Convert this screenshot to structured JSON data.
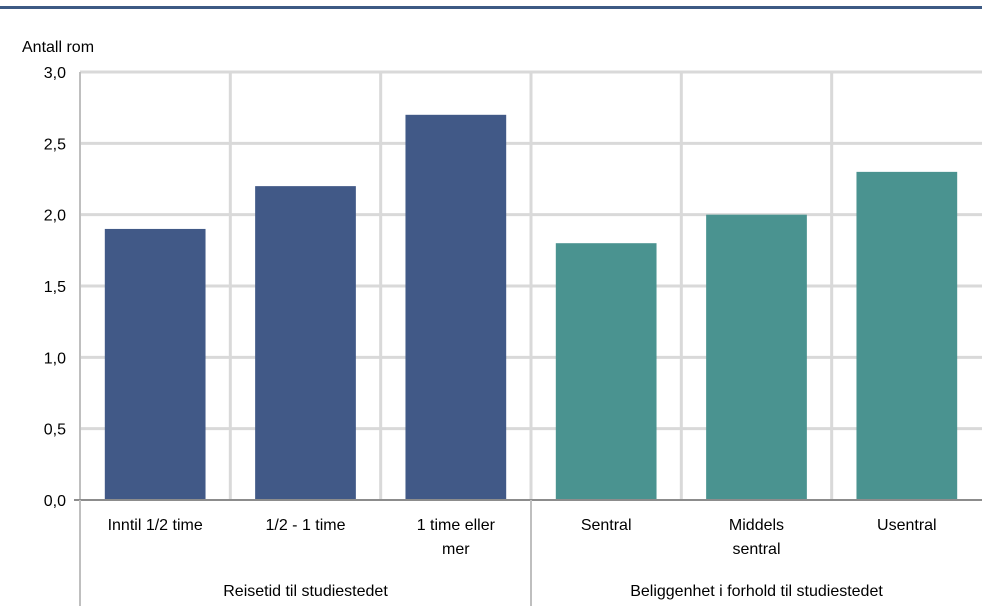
{
  "chart_data": {
    "type": "bar",
    "ylabel": "Antall rom",
    "ylim": [
      0,
      3
    ],
    "yticks": [
      "0,0",
      "0,5",
      "1,0",
      "1,5",
      "2,0",
      "2,5",
      "3,0"
    ],
    "grid": true,
    "groups": [
      {
        "label": "Reisetid til studiestedet",
        "color": "#415987",
        "categories": [
          [
            "Inntil 1/2 time"
          ],
          [
            "1/2 - 1 time"
          ],
          [
            "1 time eller",
            "mer"
          ]
        ],
        "values": [
          1.9,
          2.2,
          2.7
        ]
      },
      {
        "label": "Beliggenhet i forhold til studiestedet",
        "color": "#4a9390",
        "categories": [
          [
            "Sentral"
          ],
          [
            "Middels",
            "sentral"
          ],
          [
            "Usentral"
          ]
        ],
        "values": [
          1.8,
          2.0,
          2.3
        ]
      }
    ]
  }
}
